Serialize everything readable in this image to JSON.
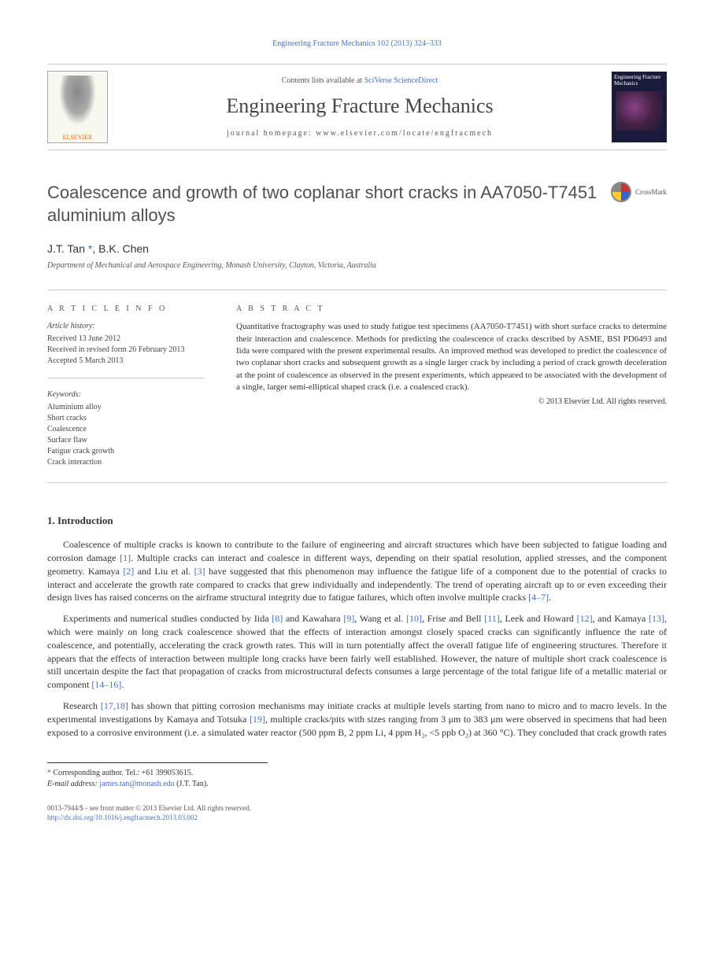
{
  "header": {
    "citation_link": "Engineering Fracture Mechanics 102 (2013) 324–333",
    "contents_prefix": "Contents lists available at ",
    "contents_link": "SciVerse ScienceDirect",
    "journal_name": "Engineering Fracture Mechanics",
    "homepage_label": "journal homepage: ",
    "homepage_url": "www.elsevier.com/locate/engfracmech",
    "publisher_logo": "ELSEVIER",
    "cover_label": "Engineering Fracture Mechanics"
  },
  "article": {
    "title": "Coalescence and growth of two coplanar short cracks in AA7050-T7451 aluminium alloys",
    "crossmark": "CrossMark",
    "authors_prefix": "J.T. Tan",
    "corr_mark": "*",
    "authors_suffix": ", B.K. Chen",
    "affiliation": "Department of Mechanical and Aerospace Engineering, Monash University, Clayton, Victoria, Australia"
  },
  "info": {
    "article_info_label": "A R T I C L E   I N F O",
    "abstract_label": "A B S T R A C T",
    "history_label": "Article history:",
    "history": {
      "received": "Received 13 June 2012",
      "revised": "Received in revised form 26 February 2013",
      "accepted": "Accepted 5 March 2013"
    },
    "keywords_label": "Keywords:",
    "keywords": [
      "Aluminium alloy",
      "Short cracks",
      "Coalescence",
      "Surface flaw",
      "Fatigue crack growth",
      "Crack interaction"
    ],
    "abstract": "Quantitative fractography was used to study fatigue test specimens (AA7050-T7451) with short surface cracks to determine their interaction and coalescence. Methods for predicting the coalescence of cracks described by ASME, BSI PD6493 and Iida were compared with the present experimental results. An improved method was developed to predict the coalescence of two coplanar short cracks and subsequent growth as a single larger crack by including a period of crack growth deceleration at the point of coalescence as observed in the present experiments, which appeared to be associated with the development of a single, larger semi-elliptical shaped crack (i.e. a coalesced crack).",
    "copyright": "© 2013 Elsevier Ltd. All rights reserved."
  },
  "body": {
    "section1_heading": "1. Introduction",
    "para1_a": "Coalescence of multiple cracks is known to contribute to the failure of engineering and aircraft structures which have been subjected to fatigue loading and corrosion damage ",
    "ref1": "[1]",
    "para1_b": ". Multiple cracks can interact and coalesce in different ways, depending on their spatial resolution, applied stresses, and the component geometry. Kamaya ",
    "ref2": "[2]",
    "para1_c": " and Liu et al. ",
    "ref3": "[3]",
    "para1_d": " have suggested that this phenomenon may influence the fatigue life of a component due to the potential of cracks to interact and accelerate the growth rate compared to cracks that grew individually and independently. The trend of operating aircraft up to or even exceeding their design lives has raised concerns on the airframe structural integrity due to fatigue failures, which often involve multiple cracks ",
    "ref4_7": "[4–7]",
    "para1_e": ".",
    "para2_a": "Experiments and numerical studies conducted by Iida ",
    "ref8": "[8]",
    "para2_b": " and Kawahara ",
    "ref9": "[9]",
    "para2_c": ", Wang et al. ",
    "ref10": "[10]",
    "para2_d": ", Frise and Bell ",
    "ref11": "[11]",
    "para2_e": ", Leek and Howard ",
    "ref12": "[12]",
    "para2_f": ", and Kamaya ",
    "ref13": "[13]",
    "para2_g": ", which were mainly on long crack coalescence showed that the effects of interaction amongst closely spaced cracks can significantly influence the rate of coalescence, and potentially, accelerating the crack growth rates. This will in turn potentially affect the overall fatigue life of engineering structures. Therefore it appears that the effects of interaction between multiple long cracks have been fairly well established. However, the nature of multiple short crack coalescence is still uncertain despite the fact that propagation of cracks from microstructural defects consumes a large percentage of the total fatigue life of a metallic material or component ",
    "ref14_16": "[14–16]",
    "para2_h": ".",
    "para3_a": "Research ",
    "ref17_18": "[17,18]",
    "para3_b": " has shown that pitting corrosion mechanisms may initiate cracks at multiple levels starting from nano to micro and to macro levels. In the experimental investigations by Kamaya and Totsuka ",
    "ref19": "[19]",
    "para3_c": ", multiple cracks/pits with sizes ranging from 3 μm to 383 μm were observed in specimens that had been exposed to a corrosive environment (i.e. a simulated water reactor (500 ppm B, 2 ppm Li, 4 ppm H₂, <5 ppb O₂) at 360 °C). They concluded that crack growth rates"
  },
  "footnotes": {
    "corr": "Corresponding author. Tel.: +61 399053615.",
    "email_label": "E-mail address: ",
    "email": "james.tan@monash.edu",
    "email_suffix": " (J.T. Tan)."
  },
  "bottom": {
    "issn": "0013-7944/$ - see front matter © 2013 Elsevier Ltd. All rights reserved.",
    "doi": "http://dx.doi.org/10.1016/j.engfracmech.2013.03.002"
  }
}
